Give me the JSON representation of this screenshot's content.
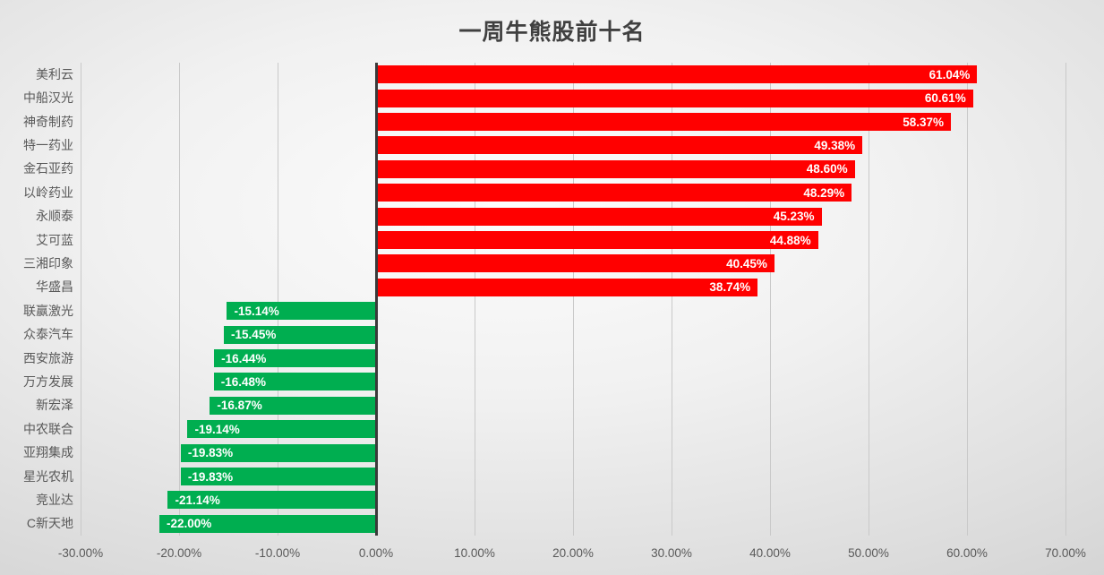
{
  "colors": {
    "positive_bar": "#ff0000",
    "negative_bar": "#00ae50",
    "zero_axis_line": "#3a3a3a",
    "gridline": "#c9c9c9",
    "title_text": "#404040",
    "axis_label_text": "#595959",
    "bar_value_text": "#ffffff"
  },
  "chart_data": {
    "type": "bar",
    "orientation": "horizontal",
    "title": "一周牛熊股前十名",
    "categories": [
      "美利云",
      "中船汉光",
      "神奇制药",
      "特一药业",
      "金石亚药",
      "以岭药业",
      "永顺泰",
      "艾可蓝",
      "三湘印象",
      "华盛昌",
      "联赢激光",
      "众泰汽车",
      "西安旅游",
      "万方发展",
      "新宏泽",
      "中农联合",
      "亚翔集成",
      "星光农机",
      "竞业达",
      "C新天地"
    ],
    "values": [
      61.04,
      60.61,
      58.37,
      49.38,
      48.6,
      48.29,
      45.23,
      44.88,
      40.45,
      38.74,
      -15.14,
      -15.45,
      -16.44,
      -16.48,
      -16.87,
      -19.14,
      -19.83,
      -19.83,
      -21.14,
      -22.0
    ],
    "value_labels": [
      "61.04%",
      "60.61%",
      "58.37%",
      "49.38%",
      "48.60%",
      "48.29%",
      "45.23%",
      "44.88%",
      "40.45%",
      "38.74%",
      "-15.14%",
      "-15.45%",
      "-16.44%",
      "-16.48%",
      "-16.87%",
      "-19.14%",
      "-19.83%",
      "-19.83%",
      "-21.14%",
      "-22.00%"
    ],
    "xlabel": "",
    "ylabel": "",
    "xlim": [
      -30,
      70
    ],
    "x_tick_step": 10,
    "x_tick_labels": [
      "-30.00%",
      "-20.00%",
      "-10.00%",
      "0.00%",
      "10.00%",
      "20.00%",
      "30.00%",
      "40.00%",
      "50.00%",
      "60.00%",
      "70.00%"
    ],
    "grid": true,
    "legend": false,
    "data_label_position": "inside-end"
  }
}
